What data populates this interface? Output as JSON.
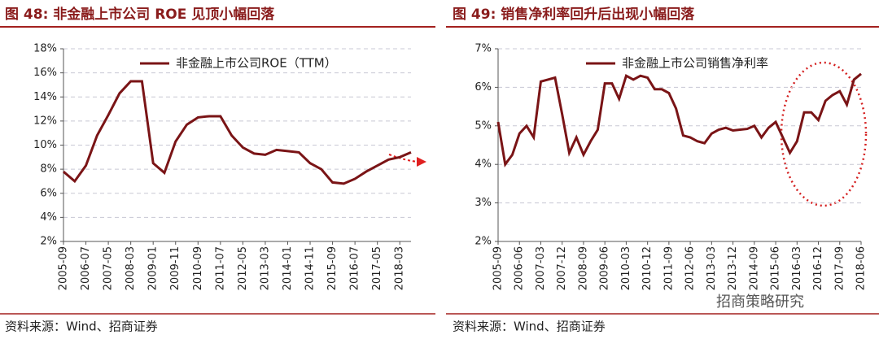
{
  "chart_data": [
    {
      "type": "line",
      "title": "图 48:  非金融上市公司 ROE 见顶小幅回落",
      "source": "资料来源：Wind、招商证券",
      "categories": [
        "2005-09",
        null,
        "2006-07",
        null,
        "2007-05",
        null,
        "2008-03",
        null,
        "2009-01",
        null,
        "2009-11",
        null,
        "2010-09",
        null,
        "2011-07",
        null,
        "2012-05",
        null,
        "2013-03",
        null,
        "2014-01",
        null,
        "2014-11",
        null,
        "2015-09",
        null,
        "2016-07",
        null,
        "2017-05",
        null,
        "2018-03",
        null
      ],
      "series": [
        {
          "name": "非金融上市公司ROE（TTM）",
          "color": "#7a1416",
          "values": [
            7.8,
            7.0,
            8.3,
            10.8,
            12.5,
            14.3,
            15.3,
            15.3,
            8.5,
            7.7,
            10.3,
            11.7,
            12.3,
            12.4,
            12.4,
            10.8,
            9.8,
            9.3,
            9.2,
            9.6,
            9.5,
            9.4,
            8.5,
            8.0,
            6.9,
            6.8,
            7.2,
            7.8,
            8.3,
            8.8,
            9.0,
            9.4
          ]
        }
      ],
      "ylim": [
        2,
        18
      ],
      "yticks": [
        {
          "value": 2,
          "label": "2%"
        },
        {
          "value": 4,
          "label": "4%"
        },
        {
          "value": 6,
          "label": "6%"
        },
        {
          "value": 8,
          "label": "8%"
        },
        {
          "value": 10,
          "label": "10%"
        },
        {
          "value": 12,
          "label": "12%"
        },
        {
          "value": 14,
          "label": "14%"
        },
        {
          "value": 16,
          "label": "16%"
        },
        {
          "value": 18,
          "label": "18%"
        }
      ],
      "grid": true
    },
    {
      "type": "line",
      "title": "图 49:  销售净利率回升后出现小幅回落",
      "source": "资料来源：Wind、招商证券",
      "watermark": "招商策略研究",
      "categories": [
        "2005-09",
        null,
        null,
        "2006-06",
        null,
        null,
        "2007-03",
        null,
        null,
        "2007-12",
        null,
        null,
        "2008-09",
        null,
        null,
        "2009-06",
        null,
        null,
        "2010-03",
        null,
        null,
        "2010-12",
        null,
        null,
        "2011-09",
        null,
        null,
        "2012-06",
        null,
        null,
        "2013-03",
        null,
        null,
        "2013-12",
        null,
        null,
        "2014-09",
        null,
        null,
        "2015-06",
        null,
        null,
        "2016-03",
        null,
        null,
        "2016-12",
        null,
        null,
        "2017-09",
        null,
        null,
        "2018-06"
      ],
      "series": [
        {
          "name": "非金融上市公司销售净利率",
          "color": "#7a1416",
          "values": [
            5.1,
            4.0,
            4.25,
            4.8,
            5.0,
            4.7,
            6.15,
            6.2,
            6.25,
            5.3,
            4.3,
            4.7,
            4.25,
            4.6,
            4.9,
            6.1,
            6.1,
            5.7,
            6.3,
            6.2,
            6.3,
            6.25,
            5.95,
            5.95,
            5.85,
            5.45,
            4.75,
            4.7,
            4.6,
            4.55,
            4.8,
            4.9,
            4.95,
            4.88,
            4.9,
            4.92,
            5.0,
            4.7,
            4.95,
            5.1,
            4.7,
            4.3,
            4.6,
            5.35,
            5.35,
            5.15,
            5.65,
            5.8,
            5.9,
            5.55,
            6.2,
            6.35
          ]
        }
      ],
      "ylim": [
        2,
        7
      ],
      "yticks": [
        {
          "value": 2,
          "label": "2%"
        },
        {
          "value": 3,
          "label": "3%"
        },
        {
          "value": 4,
          "label": "4%"
        },
        {
          "value": 5,
          "label": "5%"
        },
        {
          "value": 6,
          "label": "6%"
        },
        {
          "value": 7,
          "label": "7%"
        }
      ],
      "grid": true
    }
  ]
}
